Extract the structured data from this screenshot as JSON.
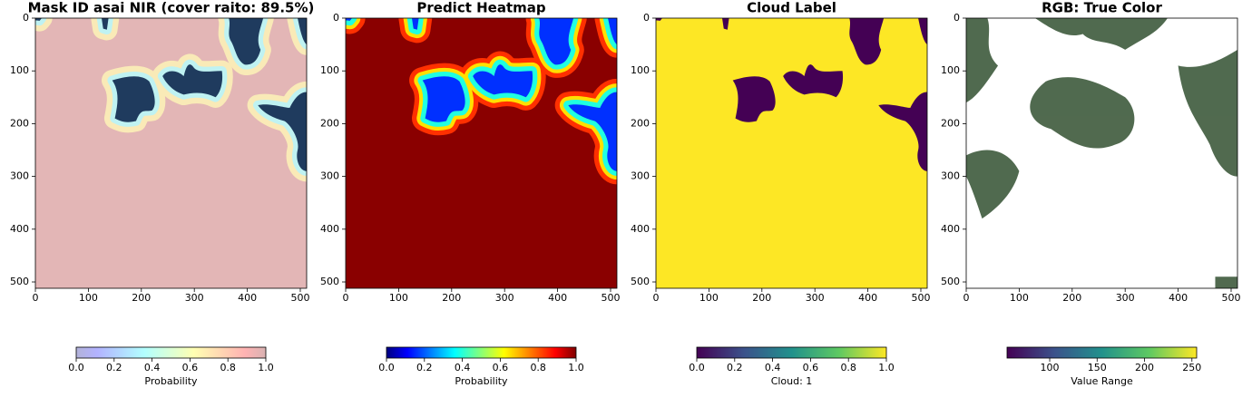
{
  "chart_data": [
    {
      "type": "image",
      "title": "Mask ID asai NIR (cover raito: 89.5%)",
      "xlim": [
        0,
        512
      ],
      "ylim": [
        512,
        0
      ],
      "xticks": [
        0,
        100,
        200,
        300,
        400,
        500
      ],
      "yticks": [
        0,
        100,
        200,
        300,
        400,
        500
      ],
      "colorbar": {
        "colormap": "jet",
        "alpha": 0.3,
        "clim": [
          0,
          1
        ],
        "ticks": [
          {
            "value": 0,
            "label": "0.0"
          },
          0.2,
          0.4,
          0.6,
          0.8,
          {
            "value": 1,
            "label": "1.0"
          }
        ],
        "label": "Probability"
      }
    },
    {
      "type": "image",
      "title": "Predict Heatmap",
      "xlim": [
        0,
        512
      ],
      "ylim": [
        512,
        0
      ],
      "xticks": [
        0,
        100,
        200,
        300,
        400,
        500
      ],
      "yticks": [
        0,
        100,
        200,
        300,
        400,
        500
      ],
      "colorbar": {
        "colormap": "jet",
        "alpha": 1,
        "clim": [
          0,
          1
        ],
        "ticks": [
          {
            "value": 0,
            "label": "0.0"
          },
          0.2,
          0.4,
          0.6,
          0.8,
          {
            "value": 1,
            "label": "1.0"
          }
        ],
        "label": "Probability"
      }
    },
    {
      "type": "image",
      "title": "Cloud Label",
      "xlim": [
        0,
        512
      ],
      "ylim": [
        512,
        0
      ],
      "xticks": [
        0,
        100,
        200,
        300,
        400,
        500
      ],
      "yticks": [
        0,
        100,
        200,
        300,
        400,
        500
      ],
      "colorbar": {
        "colormap": "viridis",
        "alpha": 1,
        "clim": [
          0,
          1
        ],
        "ticks": [
          {
            "value": 0,
            "label": "0.0"
          },
          0.2,
          0.4,
          0.6,
          0.8,
          {
            "value": 1,
            "label": "1.0"
          }
        ],
        "label": "Cloud: 1"
      }
    },
    {
      "type": "image",
      "title": "RGB: True Color",
      "xlim": [
        0,
        512
      ],
      "ylim": [
        512,
        0
      ],
      "xticks": [
        0,
        100,
        200,
        300,
        400,
        500
      ],
      "yticks": [
        0,
        100,
        200,
        300,
        400,
        500
      ],
      "colorbar": {
        "colormap": "viridis",
        "alpha": 1,
        "clim": [
          55,
          255
        ],
        "ticks": [
          100,
          150,
          200,
          250
        ],
        "label": "Value Range"
      }
    }
  ]
}
